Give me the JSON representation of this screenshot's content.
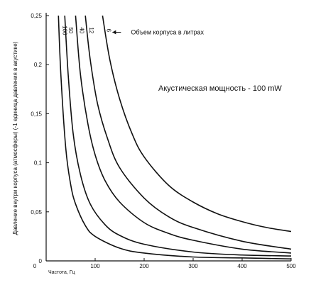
{
  "chart_data": {
    "type": "line",
    "title": "",
    "xlabel": "Частота, Гц",
    "ylabel": "Давление внутри корпуса (атмосферы) (-1 единица давления в акустике)",
    "xlim": [
      0,
      500
    ],
    "ylim": [
      0,
      0.25
    ],
    "x_ticks": [
      "0",
      "100",
      "200",
      "300",
      "400",
      "500"
    ],
    "y_ticks": [
      "0",
      "0,05",
      "0,1",
      "0,15",
      "0,2",
      "0,25"
    ],
    "grid": false,
    "annotations": {
      "curve_arrow_label": "Объем корпуса в литрах",
      "power_label": "Акустическая мощность - 100 mW"
    },
    "series": [
      {
        "name": "100",
        "x": [
          25,
          30,
          40,
          50,
          60,
          80,
          100,
          150,
          200,
          300,
          400,
          500
        ],
        "y": [
          0.25,
          0.19,
          0.115,
          0.078,
          0.058,
          0.036,
          0.025,
          0.013,
          0.008,
          0.004,
          0.003,
          0.002
        ]
      },
      {
        "name": "50",
        "x": [
          38,
          45,
          55,
          70,
          90,
          120,
          150,
          200,
          300,
          400,
          500
        ],
        "y": [
          0.25,
          0.19,
          0.13,
          0.088,
          0.058,
          0.037,
          0.026,
          0.017,
          0.009,
          0.006,
          0.005
        ]
      },
      {
        "name": "40",
        "x": [
          60,
          70,
          85,
          100,
          120,
          150,
          200,
          250,
          300,
          400,
          500
        ],
        "y": [
          0.25,
          0.19,
          0.14,
          0.108,
          0.082,
          0.06,
          0.039,
          0.028,
          0.021,
          0.012,
          0.008
        ]
      },
      {
        "name": "12",
        "x": [
          80,
          90,
          105,
          125,
          150,
          200,
          250,
          300,
          400,
          500
        ],
        "y": [
          0.25,
          0.205,
          0.16,
          0.125,
          0.095,
          0.064,
          0.045,
          0.034,
          0.02,
          0.012
        ]
      },
      {
        "name": "6",
        "x": [
          115,
          130,
          150,
          175,
          200,
          250,
          300,
          350,
          400,
          450,
          500
        ],
        "y": [
          0.25,
          0.205,
          0.165,
          0.13,
          0.106,
          0.077,
          0.06,
          0.048,
          0.04,
          0.034,
          0.03
        ]
      }
    ]
  }
}
